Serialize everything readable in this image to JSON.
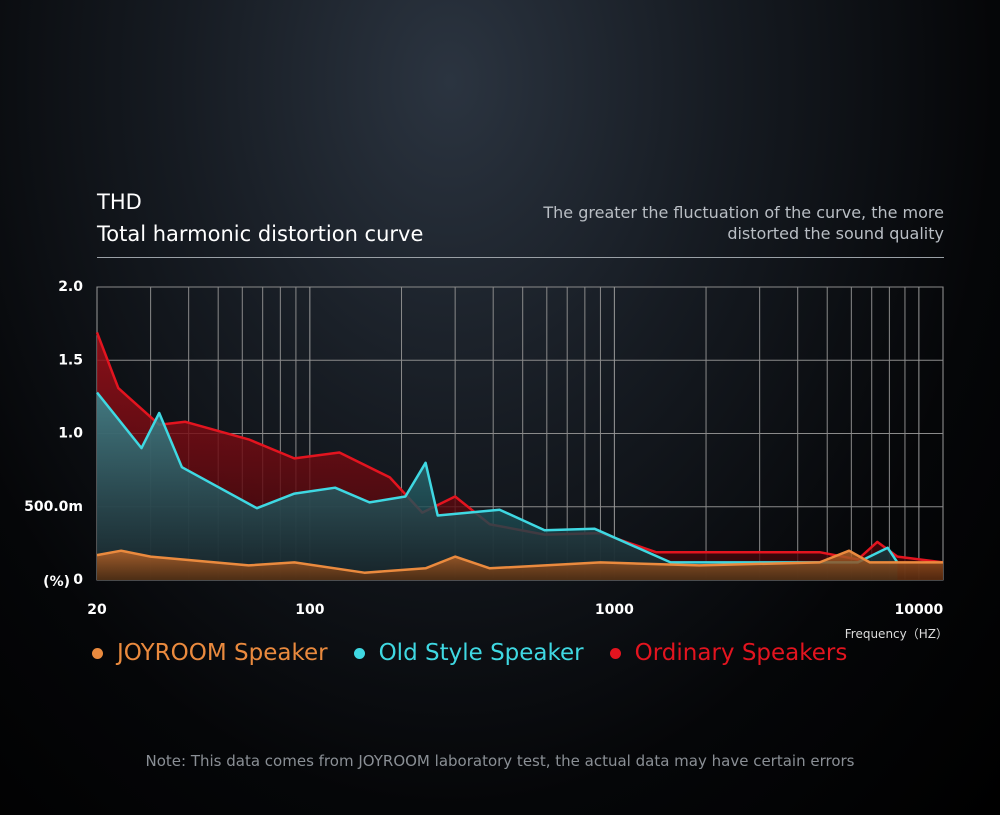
{
  "chart_data": {
    "type": "area",
    "title": "THD",
    "subtitle": "Total harmonic distortion curve",
    "annotation": "The greater the fluctuation of the curve, the more distorted the sound quality",
    "note": "Note: This data comes from JOYROOM laboratory test, the actual data may have certain errors",
    "x_label": "Frequency（HZ）",
    "y_label": "(%)",
    "x_scale": "log",
    "xlim": [
      20,
      12000
    ],
    "xticks": [
      20,
      100,
      1000,
      10000
    ],
    "x_minor_ticks": [
      30,
      40,
      50,
      60,
      70,
      80,
      90,
      200,
      300,
      400,
      500,
      600,
      700,
      800,
      900,
      2000,
      3000,
      4000,
      5000,
      6000,
      7000,
      8000,
      9000
    ],
    "ylim": [
      0,
      2
    ],
    "yticks": [
      0,
      {
        "value": 0.5,
        "label": "500.0m"
      },
      {
        "value": 1,
        "label": "1.0"
      },
      {
        "value": 1.5,
        "label": "1.5"
      },
      {
        "value": 2,
        "label": "2.0"
      }
    ],
    "grid": true,
    "series": [
      {
        "name": "Ordinary Speakers",
        "color": "#e3141f",
        "x": [
          20,
          23.5,
          32,
          39,
          63,
          89,
          125,
          183,
          234,
          300,
          390,
          590,
          900,
          1370,
          4720,
          6300,
          7300,
          8500,
          12000
        ],
        "values": [
          1.69,
          1.31,
          1.06,
          1.08,
          0.96,
          0.83,
          0.87,
          0.7,
          0.46,
          0.57,
          0.38,
          0.31,
          0.32,
          0.19,
          0.19,
          0.14,
          0.26,
          0.16,
          0.12
        ]
      },
      {
        "name": "Old Style Speaker",
        "color": "#3fd8e2",
        "x": [
          20,
          28,
          32,
          38,
          67,
          89,
          121,
          157,
          206,
          240,
          263,
          420,
          590,
          860,
          1530,
          5120,
          6300,
          7900,
          8500
        ],
        "values": [
          1.28,
          0.9,
          1.14,
          0.77,
          0.49,
          0.59,
          0.63,
          0.53,
          0.57,
          0.8,
          0.44,
          0.48,
          0.34,
          0.35,
          0.12,
          0.12,
          0.12,
          0.22,
          0.12
        ]
      },
      {
        "name": "JOYROOM Speaker",
        "color": "#ea8a3e",
        "x": [
          20,
          24,
          30,
          63,
          89,
          151,
          240,
          300,
          390,
          900,
          1900,
          4720,
          5900,
          6900,
          12000
        ],
        "values": [
          0.17,
          0.2,
          0.16,
          0.1,
          0.12,
          0.05,
          0.08,
          0.16,
          0.08,
          0.12,
          0.1,
          0.12,
          0.2,
          0.12,
          0.12
        ]
      }
    ],
    "legend_order": [
      2,
      1,
      0
    ]
  }
}
